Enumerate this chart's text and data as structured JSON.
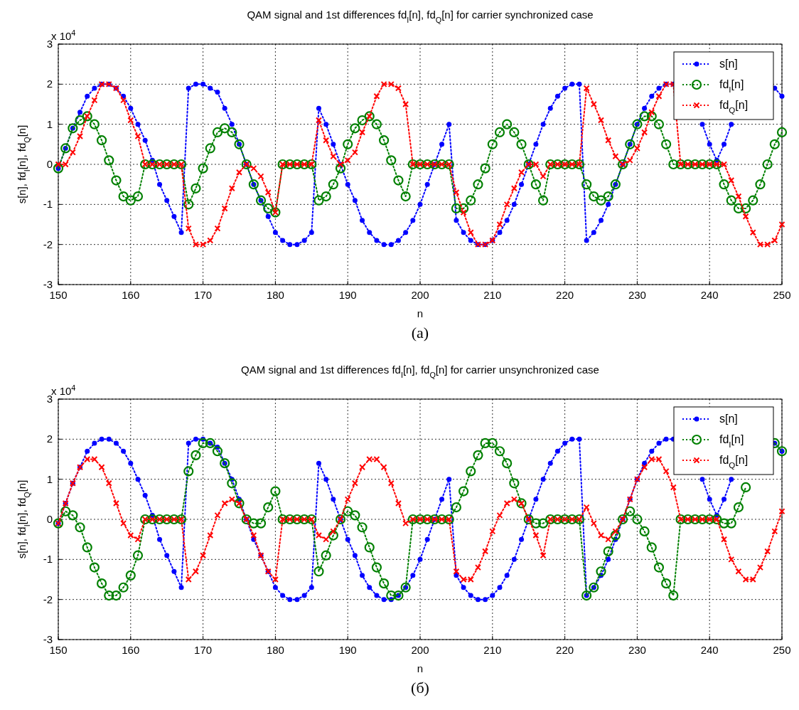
{
  "chart_data": [
    {
      "type": "line",
      "title": "QAM signal and 1st differences fd$_{I}$[n], fd$_{Q}$[n] for carrier synchronized case",
      "xlabel": "n",
      "ylabel": "s[n], fd$_{I}$[n], fd$_{Q}$[n]",
      "annotations": [
        "x 10$^{4}$",
        "(a)"
      ],
      "x": [
        150,
        151,
        152,
        153,
        154,
        155,
        156,
        157,
        158,
        159,
        160,
        161,
        162,
        163,
        164,
        165,
        166,
        167,
        168,
        169,
        170,
        171,
        172,
        173,
        174,
        175,
        176,
        177,
        178,
        179,
        180,
        181,
        182,
        183,
        184,
        185,
        186,
        187,
        188,
        189,
        190,
        191,
        192,
        193,
        194,
        195,
        196,
        197,
        198,
        199,
        200,
        201,
        202,
        203,
        204,
        205,
        206,
        207,
        208,
        209,
        210,
        211,
        212,
        213,
        214,
        215,
        216,
        217,
        218,
        219,
        220,
        221,
        222,
        223,
        224,
        225,
        226,
        227,
        228,
        229,
        230,
        231,
        232,
        233,
        234,
        235,
        236,
        237,
        238,
        239,
        240,
        241,
        242,
        243,
        244,
        245,
        246,
        247,
        248,
        249,
        250
      ],
      "series": [
        {
          "name": "s[n]",
          "color": "#0000ff",
          "marker": "circle",
          "values": [
            -0.1,
            0.4,
            0.9,
            1.3,
            1.7,
            1.9,
            2.0,
            2.0,
            1.9,
            1.7,
            1.4,
            1.0,
            0.6,
            0.1,
            -0.5,
            -0.9,
            -1.3,
            -1.7,
            1.9,
            2.0,
            2.0,
            1.9,
            1.8,
            1.4,
            1.0,
            0.5,
            0.0,
            -0.5,
            -0.9,
            -1.3,
            -1.7,
            -1.9,
            -2.0,
            -2.0,
            -1.9,
            -1.7,
            1.4,
            1.0,
            0.5,
            0.0,
            -0.5,
            -0.9,
            -1.4,
            -1.7,
            -1.9,
            -2.0,
            -2.0,
            -1.9,
            -1.7,
            -1.4,
            -1.0,
            -0.5,
            0.0,
            0.5,
            1.0,
            -1.4,
            -1.7,
            -1.9,
            -2.0,
            -2.0,
            -1.9,
            -1.7,
            -1.4,
            -1.0,
            -0.5,
            0.0,
            0.5,
            1.0,
            1.4,
            1.7,
            1.9,
            2.0,
            2.0,
            -1.9,
            -1.7,
            -1.4,
            -1.0,
            -0.5,
            0.0,
            0.5,
            1.0,
            1.4,
            1.7,
            1.9,
            2.0,
            2.0,
            null,
            null,
            null,
            1.0,
            0.5,
            0.1,
            0.5,
            1.0,
            null,
            null,
            null,
            null,
            null,
            1.9,
            1.7
          ]
        },
        {
          "name": "fd$_{I}$[n]",
          "color": "#008000",
          "marker": "circle-open",
          "values": [
            -0.1,
            0.4,
            0.9,
            1.1,
            1.2,
            1.0,
            0.6,
            0.1,
            -0.4,
            -0.8,
            -0.9,
            -0.8,
            0,
            0,
            0,
            0,
            0,
            0,
            -1.0,
            -0.6,
            -0.1,
            0.4,
            0.8,
            0.9,
            0.8,
            0.5,
            0.0,
            -0.5,
            -0.9,
            -1.1,
            -1.2,
            0,
            0,
            0,
            0,
            0,
            -0.9,
            -0.8,
            -0.5,
            -0.1,
            0.5,
            0.9,
            1.1,
            1.2,
            1.0,
            0.6,
            0.1,
            -0.4,
            -0.8,
            0,
            0,
            0,
            0,
            0,
            0,
            -1.1,
            -1.1,
            -0.9,
            -0.5,
            -0.1,
            0.5,
            0.8,
            1.0,
            0.8,
            0.5,
            0.0,
            -0.5,
            -0.9,
            0,
            0,
            0,
            0,
            0,
            -0.5,
            -0.8,
            -0.9,
            -0.8,
            -0.5,
            0.0,
            0.5,
            1.0,
            1.2,
            1.2,
            1.0,
            0.5,
            0.0,
            0,
            0,
            0,
            0,
            0,
            0,
            -0.5,
            -0.9,
            -1.1,
            -1.1,
            -0.9,
            -0.5,
            0.0,
            0.5,
            0.8
          ]
        },
        {
          "name": "fd$_{Q}$[n]",
          "color": "#ff0000",
          "marker": "cross",
          "values": [
            0,
            0,
            0.3,
            0.7,
            1.2,
            1.6,
            2.0,
            2.0,
            1.9,
            1.6,
            1.1,
            0.7,
            0,
            0,
            0,
            0,
            0,
            0,
            -1.6,
            -2.0,
            -2.0,
            -1.9,
            -1.6,
            -1.1,
            -0.6,
            -0.2,
            0.0,
            -0.1,
            -0.3,
            -0.7,
            -1.2,
            0,
            0,
            0,
            0,
            0,
            1.1,
            0.6,
            0.2,
            0.0,
            0.1,
            0.3,
            0.8,
            1.2,
            1.7,
            2.0,
            2.0,
            1.9,
            1.5,
            0,
            0,
            0,
            0,
            0,
            0,
            -0.7,
            -1.2,
            -1.7,
            -2.0,
            -2.0,
            -1.9,
            -1.5,
            -1.0,
            -0.6,
            -0.2,
            0.0,
            0.0,
            -0.3,
            0,
            0,
            0,
            0,
            0,
            1.9,
            1.5,
            1.1,
            0.6,
            0.2,
            0.0,
            0.1,
            0.4,
            0.8,
            1.3,
            1.7,
            2.0,
            2.0,
            0,
            0,
            0,
            0,
            0,
            0,
            0.0,
            -0.4,
            -0.8,
            -1.3,
            -1.7,
            -2.0,
            -2.0,
            -1.9,
            -1.5
          ]
        }
      ],
      "line_style": "dotted",
      "xlim": [
        150,
        250
      ],
      "ylim": [
        -3,
        3
      ],
      "xticks": [
        150,
        160,
        170,
        180,
        190,
        200,
        210,
        220,
        230,
        240,
        250
      ],
      "yticks": [
        -3,
        -2,
        -1,
        0,
        1,
        2,
        3
      ],
      "grid": true,
      "legend": "top right"
    },
    {
      "type": "line",
      "title": "QAM signal and 1st differences fd$_{I}$[n], fd$_{Q}$[n] for carrier unsynchronized case",
      "xlabel": "n",
      "ylabel": "s[n], fd$_{I}$[n], fd$_{Q}$[n]",
      "annotations": [
        "x 10$^{4}$",
        "(б)"
      ],
      "x": [
        150,
        151,
        152,
        153,
        154,
        155,
        156,
        157,
        158,
        159,
        160,
        161,
        162,
        163,
        164,
        165,
        166,
        167,
        168,
        169,
        170,
        171,
        172,
        173,
        174,
        175,
        176,
        177,
        178,
        179,
        180,
        181,
        182,
        183,
        184,
        185,
        186,
        187,
        188,
        189,
        190,
        191,
        192,
        193,
        194,
        195,
        196,
        197,
        198,
        199,
        200,
        201,
        202,
        203,
        204,
        205,
        206,
        207,
        208,
        209,
        210,
        211,
        212,
        213,
        214,
        215,
        216,
        217,
        218,
        219,
        220,
        221,
        222,
        223,
        224,
        225,
        226,
        227,
        228,
        229,
        230,
        231,
        232,
        233,
        234,
        235,
        236,
        237,
        238,
        239,
        240,
        241,
        242,
        243,
        244,
        245,
        246,
        247,
        248,
        249,
        250
      ],
      "series": [
        {
          "name": "s[n]",
          "color": "#0000ff",
          "marker": "circle",
          "values": [
            -0.1,
            0.4,
            0.9,
            1.3,
            1.7,
            1.9,
            2.0,
            2.0,
            1.9,
            1.7,
            1.4,
            1.0,
            0.6,
            0.1,
            -0.5,
            -0.9,
            -1.3,
            -1.7,
            1.9,
            2.0,
            2.0,
            1.9,
            1.8,
            1.4,
            1.0,
            0.5,
            0.0,
            -0.5,
            -0.9,
            -1.3,
            -1.7,
            -1.9,
            -2.0,
            -2.0,
            -1.9,
            -1.7,
            1.4,
            1.0,
            0.5,
            0.0,
            -0.5,
            -0.9,
            -1.4,
            -1.7,
            -1.9,
            -2.0,
            -2.0,
            -1.9,
            -1.7,
            -1.4,
            -1.0,
            -0.5,
            0.0,
            0.5,
            1.0,
            -1.4,
            -1.7,
            -1.9,
            -2.0,
            -2.0,
            -1.9,
            -1.7,
            -1.4,
            -1.0,
            -0.5,
            0.0,
            0.5,
            1.0,
            1.4,
            1.7,
            1.9,
            2.0,
            2.0,
            -1.9,
            -1.7,
            -1.4,
            -1.0,
            -0.5,
            0.0,
            0.5,
            1.0,
            1.4,
            1.7,
            1.9,
            2.0,
            2.0,
            null,
            null,
            null,
            1.0,
            0.5,
            0.1,
            0.5,
            1.0,
            null,
            null,
            null,
            null,
            null,
            1.9,
            1.7
          ]
        },
        {
          "name": "fd$_{I}$[n]",
          "color": "#008000",
          "marker": "circle-open",
          "values": [
            -0.1,
            0.2,
            0.1,
            -0.2,
            -0.7,
            -1.2,
            -1.6,
            -1.9,
            -1.9,
            -1.7,
            -1.4,
            -0.9,
            0,
            0,
            0,
            0,
            0,
            0,
            1.2,
            1.6,
            1.9,
            1.9,
            1.7,
            1.4,
            0.9,
            0.4,
            0.0,
            -0.1,
            -0.1,
            0.3,
            0.7,
            0,
            0,
            0,
            0,
            0,
            -1.3,
            -0.9,
            -0.4,
            0.0,
            0.2,
            0.1,
            -0.2,
            -0.7,
            -1.2,
            -1.6,
            -1.9,
            -1.9,
            -1.7,
            0,
            0,
            0,
            0,
            0,
            0,
            0.3,
            0.7,
            1.2,
            1.6,
            1.9,
            1.9,
            1.7,
            1.4,
            0.9,
            0.4,
            0.0,
            -0.1,
            -0.1,
            0.0,
            0,
            0,
            0,
            0,
            -1.9,
            -1.7,
            -1.3,
            -0.8,
            -0.4,
            0.0,
            0.2,
            0.0,
            -0.3,
            -0.7,
            -1.2,
            -1.6,
            -1.9,
            0,
            0,
            0,
            0,
            0,
            0,
            -0.1,
            -0.1,
            0.3,
            0.8,
            null,
            null,
            null,
            1.9,
            1.7
          ]
        },
        {
          "name": "fd$_{Q}$[n]",
          "color": "#ff0000",
          "marker": "cross",
          "values": [
            -0.1,
            0.4,
            0.9,
            1.3,
            1.5,
            1.5,
            1.3,
            0.9,
            0.4,
            -0.1,
            -0.4,
            -0.5,
            0,
            0,
            0,
            0,
            0,
            0,
            -1.5,
            -1.3,
            -0.9,
            -0.4,
            0.1,
            0.4,
            0.5,
            0.4,
            0.0,
            -0.4,
            -0.9,
            -1.3,
            -1.5,
            0,
            0,
            0,
            0,
            0,
            -0.4,
            -0.5,
            -0.3,
            0.0,
            0.5,
            0.9,
            1.3,
            1.5,
            1.5,
            1.3,
            0.9,
            0.4,
            -0.1,
            0,
            0,
            0,
            0,
            0,
            0,
            -1.3,
            -1.5,
            -1.5,
            -1.2,
            -0.8,
            -0.3,
            0.1,
            0.4,
            0.5,
            0.4,
            0.0,
            -0.4,
            -0.9,
            0,
            0,
            0,
            0,
            0,
            0.3,
            -0.1,
            -0.4,
            -0.5,
            -0.3,
            0.0,
            0.5,
            1.0,
            1.3,
            1.5,
            1.5,
            1.2,
            0.8,
            0,
            0,
            0,
            0,
            0,
            0,
            -0.5,
            -1.0,
            -1.3,
            -1.5,
            -1.5,
            -1.2,
            -0.8,
            -0.3,
            0.2
          ]
        }
      ],
      "line_style": "dotted",
      "xlim": [
        150,
        250
      ],
      "ylim": [
        -3,
        3
      ],
      "xticks": [
        150,
        160,
        170,
        180,
        190,
        200,
        210,
        220,
        230,
        240,
        250
      ],
      "yticks": [
        -3,
        -2,
        -1,
        0,
        1,
        2,
        3
      ],
      "grid": true,
      "legend": "top right"
    }
  ]
}
